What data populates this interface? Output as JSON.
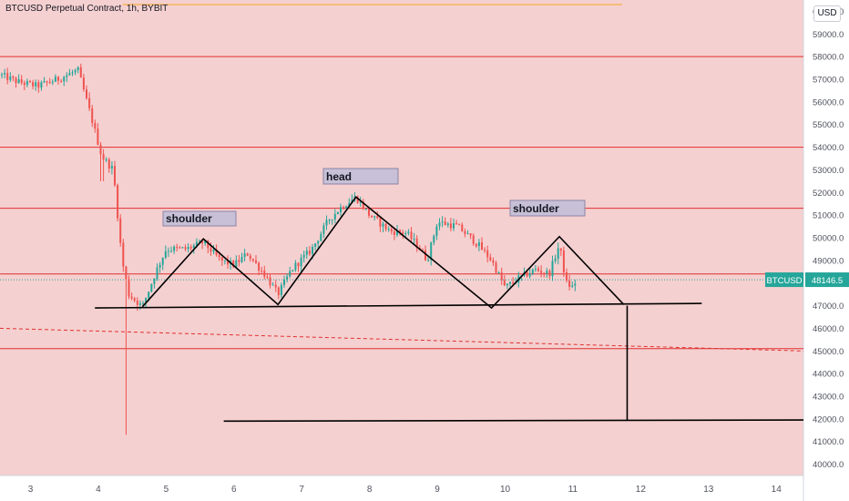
{
  "header": {
    "title": "BTCUSD Perpetual Contract, 1h, BYBIT",
    "currency": "USD"
  },
  "price_label": {
    "symbol": "BTCUSD",
    "value": "48146.5",
    "color": "#26a69a"
  },
  "annotations": {
    "left_shoulder": "shoulder",
    "head": "head",
    "right_shoulder": "shoulder"
  },
  "colors": {
    "background": "#f5d0d0",
    "up": "#26a69a",
    "down": "#ef5350",
    "level_line": "#e03030",
    "pattern_line": "#000000",
    "label_box": "#c8c0d6",
    "top_line": "#f5a623"
  },
  "chart_data": {
    "type": "candlestick",
    "title": "BTCUSD Perpetual Contract, 1h, BYBIT",
    "x_ticks": [
      "3",
      "4",
      "5",
      "6",
      "7",
      "8",
      "9",
      "10",
      "11",
      "12",
      "13",
      "14"
    ],
    "x_range": [
      2.55,
      14.4
    ],
    "y_range": [
      39500,
      60500
    ],
    "y_ticks": [
      40000,
      41000,
      42000,
      43000,
      44000,
      45000,
      46000,
      47000,
      48000,
      49000,
      50000,
      51000,
      52000,
      53000,
      54000,
      55000,
      56000,
      57000,
      58000,
      59000,
      60000
    ],
    "last_price": 48146.5,
    "horizontal_levels": [
      58000,
      54000,
      51300,
      48400,
      45100
    ],
    "dashed_trend": {
      "from": [
        2.55,
        46000
      ],
      "to": [
        14.4,
        45000
      ]
    },
    "neckline": {
      "from": [
        3.95,
        46900
      ],
      "to": [
        12.9,
        47100
      ]
    },
    "target_line": {
      "from": [
        5.85,
        41900
      ],
      "to": [
        14.4,
        41950
      ]
    },
    "measured_move": {
      "x": 11.8,
      "from": 47000,
      "to": 41950
    },
    "pattern": [
      [
        4.65,
        46950
      ],
      [
        5.55,
        49950
      ],
      [
        6.65,
        47050
      ],
      [
        7.8,
        51800
      ],
      [
        9.8,
        46900
      ],
      [
        10.8,
        50050
      ],
      [
        11.75,
        47050
      ]
    ],
    "anchors": [
      [
        2.55,
        57200
      ],
      [
        2.8,
        56900
      ],
      [
        3.1,
        56700
      ],
      [
        3.4,
        57000
      ],
      [
        3.7,
        57400
      ],
      [
        3.88,
        55500
      ],
      [
        4.05,
        53600
      ],
      [
        4.22,
        53000
      ],
      [
        4.35,
        49000
      ],
      [
        4.45,
        47500
      ],
      [
        4.65,
        46950
      ],
      [
        4.85,
        48500
      ],
      [
        5.0,
        49500
      ],
      [
        5.3,
        49500
      ],
      [
        5.55,
        49800
      ],
      [
        5.8,
        49000
      ],
      [
        6.0,
        48800
      ],
      [
        6.2,
        49300
      ],
      [
        6.45,
        48400
      ],
      [
        6.65,
        47500
      ],
      [
        6.85,
        48600
      ],
      [
        7.15,
        49500
      ],
      [
        7.4,
        50800
      ],
      [
        7.6,
        51400
      ],
      [
        7.8,
        51800
      ],
      [
        8.0,
        51000
      ],
      [
        8.3,
        50300
      ],
      [
        8.55,
        50200
      ],
      [
        8.75,
        49500
      ],
      [
        8.85,
        49000
      ],
      [
        9.0,
        50700
      ],
      [
        9.3,
        50500
      ],
      [
        9.6,
        49700
      ],
      [
        9.8,
        49000
      ],
      [
        10.0,
        47800
      ],
      [
        10.2,
        48200
      ],
      [
        10.45,
        48600
      ],
      [
        10.65,
        48400
      ],
      [
        10.8,
        49700
      ],
      [
        10.9,
        48000
      ],
      [
        11.0,
        47800
      ],
      [
        11.05,
        48150
      ]
    ]
  }
}
